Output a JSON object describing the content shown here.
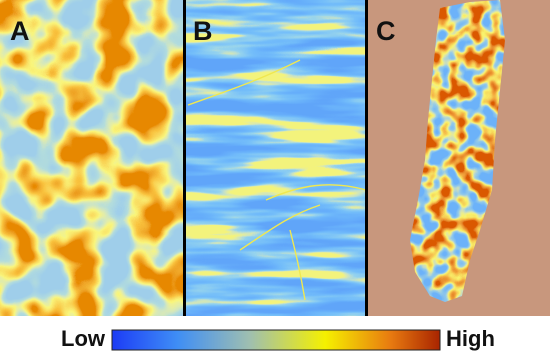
{
  "panels": [
    {
      "label": "A"
    },
    {
      "label": "B"
    },
    {
      "label": "C"
    }
  ],
  "colorbar": {
    "low": "Low",
    "high": "High"
  }
}
